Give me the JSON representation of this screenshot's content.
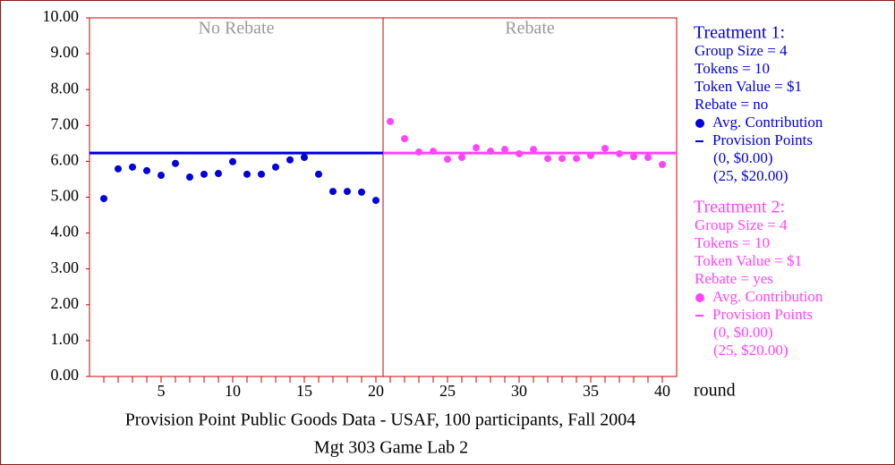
{
  "chart_data": {
    "type": "scatter",
    "title": [
      "Provision Point Public Goods Data - USAF, 100 participants, Fall 2004",
      "Mgt 303 Game Lab  2"
    ],
    "xlabel": "round",
    "panels": [
      "No Rebate",
      "Rebate"
    ],
    "xlim": [
      0,
      41
    ],
    "ylim": [
      0,
      10
    ],
    "xticks": [
      5,
      10,
      15,
      20,
      25,
      30,
      35,
      40
    ],
    "yticks": [
      {
        "value": 0,
        "label": "0.00"
      },
      {
        "value": 1,
        "label": "1.00"
      },
      {
        "value": 2,
        "label": "2.00"
      },
      {
        "value": 3,
        "label": "3.00"
      },
      {
        "value": 4,
        "label": "4.00"
      },
      {
        "value": 5,
        "label": "5.00"
      },
      {
        "value": 6,
        "label": "6.00"
      },
      {
        "value": 7,
        "label": "7.00"
      },
      {
        "value": 8,
        "label": "8.00"
      },
      {
        "value": 9,
        "label": "9.00"
      },
      {
        "value": 10,
        "label": "10.00"
      }
    ],
    "series": [
      {
        "name": "Treatment 1:",
        "color": "#0000dd",
        "details": [
          "Group Size = 4",
          "Tokens = 10",
          "Token Value = $1",
          "Rebate = no"
        ],
        "marker_label": "Avg. Contribution",
        "line": {
          "name": "Provision Points",
          "level": 6.23,
          "points": [
            "(0, $0.00)",
            "(25, $20.00)"
          ]
        },
        "x": [
          1,
          2,
          3,
          4,
          5,
          6,
          7,
          8,
          9,
          10,
          11,
          12,
          13,
          14,
          15,
          16,
          17,
          18,
          19,
          20
        ],
        "values": [
          4.96,
          5.79,
          5.84,
          5.74,
          5.61,
          5.94,
          5.56,
          5.64,
          5.66,
          5.99,
          5.64,
          5.64,
          5.84,
          6.04,
          6.11,
          5.64,
          5.16,
          5.16,
          5.14,
          4.91
        ]
      },
      {
        "name": "Treatment 2:",
        "color": "#ff44ff",
        "details": [
          "Group Size = 4",
          "Tokens = 10",
          "Token Value = $1",
          "Rebate = yes"
        ],
        "marker_label": "Avg. Contribution",
        "line": {
          "name": "Provision Points",
          "level": 6.23,
          "points": [
            "(0, $0.00)",
            "(25, $20.00)"
          ]
        },
        "x": [
          21,
          22,
          23,
          24,
          25,
          26,
          27,
          28,
          29,
          30,
          31,
          32,
          33,
          34,
          35,
          36,
          37,
          38,
          39,
          40
        ],
        "values": [
          7.11,
          6.63,
          6.26,
          6.28,
          6.06,
          6.11,
          6.38,
          6.28,
          6.33,
          6.21,
          6.33,
          6.08,
          6.08,
          6.08,
          6.16,
          6.36,
          6.21,
          6.13,
          6.11,
          5.91
        ]
      }
    ]
  }
}
